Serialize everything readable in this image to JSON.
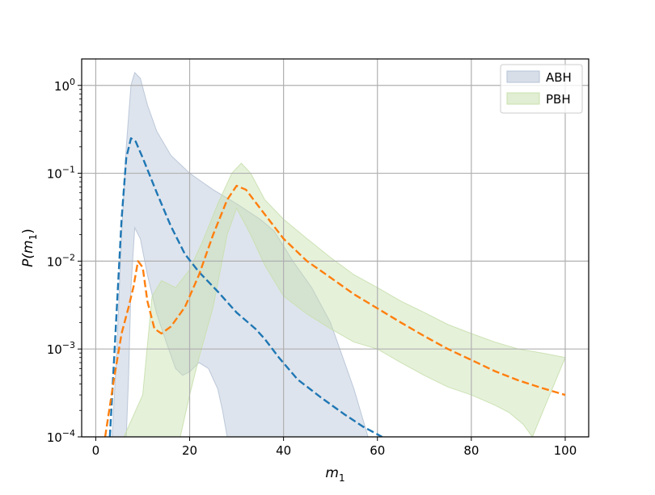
{
  "chart_data": {
    "type": "area",
    "xlabel": "m",
    "xlabel_sub": "1",
    "ylabel_prefix": "P(m",
    "ylabel_sub": "1",
    "ylabel_suffix": ")",
    "xlim": [
      -3,
      105
    ],
    "ylim": [
      0.0001,
      2.0
    ],
    "yscale": "log",
    "grid": true,
    "legend_position": "top-right",
    "x_ticks": [
      0,
      20,
      40,
      60,
      80,
      100
    ],
    "x_tick_labels": [
      "0",
      "20",
      "40",
      "60",
      "80",
      "100"
    ],
    "y_ticks": [
      1,
      0.1,
      0.01,
      0.001,
      0.0001
    ],
    "y_tick_labels": [
      {
        "base": "10",
        "exp": "0"
      },
      {
        "base": "10",
        "exp": "−1"
      },
      {
        "base": "10",
        "exp": "−2"
      },
      {
        "base": "10",
        "exp": "−3"
      },
      {
        "base": "10",
        "exp": "−4"
      }
    ],
    "colors": {
      "abh_band": "#b6c3d6",
      "pbh_band": "#c8e0ae",
      "abh_line": "#1f77b4",
      "pbh_line": "#ff7f0e",
      "grid": "#b0b0b0"
    },
    "series": [
      {
        "name": "ABH",
        "band_upper": [
          [
            3.5,
            0.0001
          ],
          [
            4.5,
            0.001
          ],
          [
            5.5,
            0.02
          ],
          [
            6.5,
            0.2
          ],
          [
            7.5,
            1.0
          ],
          [
            8.3,
            1.4
          ],
          [
            9.5,
            1.2
          ],
          [
            11,
            0.6
          ],
          [
            13,
            0.3
          ],
          [
            16,
            0.16
          ],
          [
            20,
            0.1
          ],
          [
            25,
            0.065
          ],
          [
            30,
            0.045
          ],
          [
            35,
            0.03
          ],
          [
            38,
            0.022
          ],
          [
            42,
            0.01
          ],
          [
            46,
            0.005
          ],
          [
            50,
            0.002
          ],
          [
            55,
            0.00035
          ],
          [
            58,
            0.0001
          ]
        ],
        "band_lower": [
          [
            6.5,
            0.0001
          ],
          [
            7,
            0.0005
          ],
          [
            7.5,
            0.005
          ],
          [
            8.3,
            0.024
          ],
          [
            9.5,
            0.018
          ],
          [
            11,
            0.007
          ],
          [
            13,
            0.0025
          ],
          [
            15,
            0.0012
          ],
          [
            17,
            0.0006
          ],
          [
            18.5,
            0.0005
          ],
          [
            20,
            0.00055
          ],
          [
            22,
            0.0007
          ],
          [
            24,
            0.0006
          ],
          [
            26,
            0.00035
          ],
          [
            27,
            0.0002
          ],
          [
            28,
            0.0001
          ]
        ],
        "median": [
          [
            3,
            0.0001
          ],
          [
            3.5,
            0.0003
          ],
          [
            4.5,
            0.003
          ],
          [
            5.5,
            0.03
          ],
          [
            6.5,
            0.15
          ],
          [
            7.5,
            0.25
          ],
          [
            8.5,
            0.23
          ],
          [
            10,
            0.15
          ],
          [
            13,
            0.06
          ],
          [
            16,
            0.025
          ],
          [
            19,
            0.012
          ],
          [
            22,
            0.0075
          ],
          [
            26,
            0.0045
          ],
          [
            30,
            0.0026
          ],
          [
            34,
            0.0017
          ],
          [
            36,
            0.0013
          ],
          [
            39,
            0.0008
          ],
          [
            43,
            0.00045
          ],
          [
            48,
            0.00028
          ],
          [
            53,
            0.00018
          ],
          [
            57,
            0.00013
          ],
          [
            61,
            0.0001
          ]
        ]
      },
      {
        "name": "PBH",
        "band_upper": [
          [
            6,
            0.0001
          ],
          [
            10,
            0.0003
          ],
          [
            12,
            0.004
          ],
          [
            14,
            0.006
          ],
          [
            17,
            0.005
          ],
          [
            20,
            0.008
          ],
          [
            23,
            0.018
          ],
          [
            26,
            0.045
          ],
          [
            29,
            0.1
          ],
          [
            31,
            0.13
          ],
          [
            33,
            0.1
          ],
          [
            36,
            0.05
          ],
          [
            40,
            0.03
          ],
          [
            45,
            0.018
          ],
          [
            50,
            0.011
          ],
          [
            55,
            0.007
          ],
          [
            60,
            0.005
          ],
          [
            65,
            0.0035
          ],
          [
            70,
            0.0026
          ],
          [
            75,
            0.0019
          ],
          [
            80,
            0.0015
          ],
          [
            85,
            0.0012
          ],
          [
            90,
            0.001
          ],
          [
            95,
            0.0009
          ],
          [
            100,
            0.0008
          ]
        ],
        "band_lower": [
          [
            18,
            0.0001
          ],
          [
            20,
            0.0003
          ],
          [
            22,
            0.0008
          ],
          [
            25,
            0.003
          ],
          [
            28,
            0.02
          ],
          [
            30,
            0.04
          ],
          [
            33,
            0.02
          ],
          [
            36,
            0.009
          ],
          [
            40,
            0.004
          ],
          [
            45,
            0.0025
          ],
          [
            50,
            0.0017
          ],
          [
            55,
            0.0012
          ],
          [
            60,
            0.001
          ],
          [
            65,
            0.0007
          ],
          [
            70,
            0.0005
          ],
          [
            75,
            0.00037
          ],
          [
            80,
            0.0003
          ],
          [
            85,
            0.00023
          ],
          [
            88,
            0.00019
          ],
          [
            91,
            0.00014
          ],
          [
            93,
            0.0001
          ]
        ],
        "median": [
          [
            2,
            0.0001
          ],
          [
            4,
            0.0005
          ],
          [
            5.5,
            0.0015
          ],
          [
            7,
            0.003
          ],
          [
            8,
            0.005
          ],
          [
            9,
            0.01
          ],
          [
            10,
            0.0085
          ],
          [
            11,
            0.0035
          ],
          [
            12.5,
            0.0017
          ],
          [
            14,
            0.0015
          ],
          [
            16,
            0.0018
          ],
          [
            19,
            0.003
          ],
          [
            22,
            0.007
          ],
          [
            25,
            0.02
          ],
          [
            28,
            0.05
          ],
          [
            30,
            0.072
          ],
          [
            32,
            0.065
          ],
          [
            35,
            0.04
          ],
          [
            40,
            0.018
          ],
          [
            45,
            0.01
          ],
          [
            50,
            0.0065
          ],
          [
            55,
            0.0042
          ],
          [
            60,
            0.0029
          ],
          [
            65,
            0.002
          ],
          [
            70,
            0.0014
          ],
          [
            75,
            0.001
          ],
          [
            80,
            0.00075
          ],
          [
            85,
            0.00056
          ],
          [
            90,
            0.00044
          ],
          [
            95,
            0.00036
          ],
          [
            100,
            0.0003
          ]
        ]
      }
    ]
  }
}
